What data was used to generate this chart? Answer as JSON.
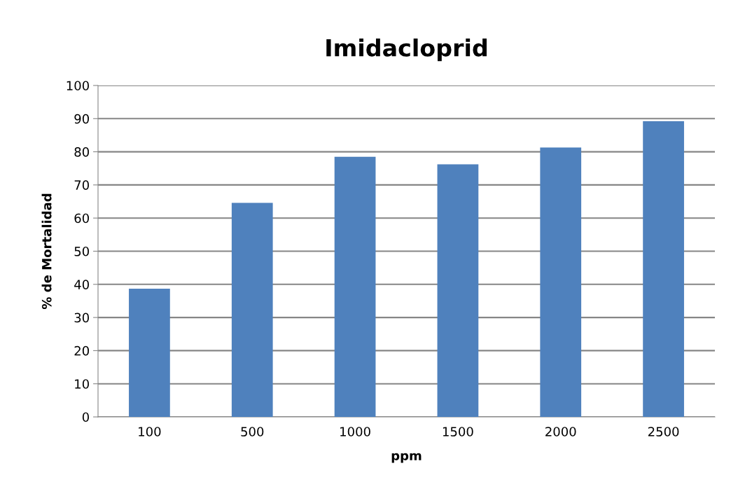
{
  "chart_data": {
    "type": "bar",
    "title": "Imidacloprid",
    "xlabel": "ppm",
    "ylabel": "% de Mortalidad",
    "categories": [
      "100",
      "500",
      "1000",
      "1500",
      "2000",
      "2500"
    ],
    "values": [
      38.7,
      64.6,
      78.5,
      76.2,
      81.3,
      89.2
    ],
    "color": "#4f81bd",
    "ylim": [
      0,
      100
    ],
    "yticks": [
      0,
      10,
      20,
      30,
      40,
      50,
      60,
      70,
      80,
      90,
      100
    ],
    "grid": "y",
    "legend": false
  }
}
